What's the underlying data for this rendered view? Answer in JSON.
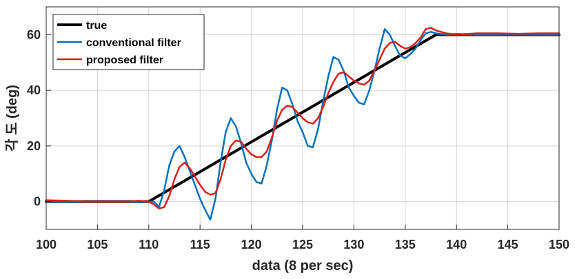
{
  "chart_data": {
    "type": "line",
    "title": "",
    "xlabel": "data (8 per sec)",
    "ylabel": "각 도 (deg)",
    "xlim": [
      100,
      150
    ],
    "ylim": [
      -10,
      70
    ],
    "xticks": [
      100,
      105,
      110,
      115,
      120,
      125,
      130,
      135,
      140,
      145,
      150
    ],
    "yticks": [
      0,
      20,
      40,
      60
    ],
    "grid": true,
    "legend_position": "top-left",
    "series": [
      {
        "name": "true",
        "color": "#000000",
        "x": [
          100,
          110,
          138,
          150
        ],
        "y": [
          0,
          0,
          60,
          60
        ]
      },
      {
        "name": "conventional filter",
        "color": "#0072BD",
        "x": [
          100,
          102,
          104,
          106,
          108,
          109,
          110,
          110.5,
          111,
          111.5,
          112,
          112.5,
          113,
          113.5,
          114,
          114.5,
          115,
          115.5,
          116,
          116.5,
          117,
          117.5,
          118,
          118.5,
          119,
          119.5,
          120,
          120.5,
          121,
          121.5,
          122,
          122.5,
          123,
          123.5,
          124,
          124.5,
          125,
          125.5,
          126,
          126.5,
          127,
          127.5,
          128,
          128.5,
          129,
          129.5,
          130,
          130.5,
          131,
          131.5,
          132,
          132.5,
          133,
          133.5,
          134,
          134.5,
          135,
          135.5,
          136,
          136.5,
          137,
          137.5,
          138,
          139,
          140,
          142,
          144,
          146,
          148,
          150
        ],
        "y": [
          0,
          0,
          0,
          0,
          0,
          0,
          0,
          0,
          -2,
          4,
          13,
          18,
          20,
          16,
          11,
          6,
          1,
          -3,
          -6.5,
          1,
          14,
          25,
          30,
          27,
          21,
          14,
          10,
          7,
          6.5,
          13,
          22,
          33,
          41,
          40,
          35,
          29,
          25,
          20,
          19.5,
          26,
          36,
          45,
          52,
          51,
          47,
          41,
          38,
          35.5,
          35,
          40,
          47,
          55,
          62,
          60,
          56,
          52.5,
          51.5,
          53,
          55,
          58,
          60.5,
          61,
          60.5,
          60,
          60,
          60,
          60,
          60,
          60,
          60
        ]
      },
      {
        "name": "proposed filter",
        "color": "#D91E18",
        "x": [
          100,
          102,
          104,
          106,
          108,
          109,
          110,
          110.5,
          111,
          111.5,
          112,
          112.5,
          113,
          113.5,
          114,
          114.5,
          115,
          115.5,
          116,
          116.5,
          117,
          117.5,
          118,
          118.5,
          119,
          119.5,
          120,
          120.5,
          121,
          121.5,
          122,
          122.5,
          123,
          123.5,
          124,
          124.5,
          125,
          125.5,
          126,
          126.5,
          127,
          127.5,
          128,
          128.5,
          129,
          129.5,
          130,
          130.5,
          131,
          131.5,
          132,
          132.5,
          133,
          133.5,
          134,
          134.5,
          135,
          135.5,
          136,
          136.5,
          137,
          137.5,
          138,
          139,
          140,
          142,
          144,
          146,
          148,
          150
        ],
        "y": [
          0.5,
          0.3,
          0,
          0,
          0,
          0.3,
          0,
          -1,
          -2.5,
          -2,
          2,
          8,
          12.5,
          14,
          12,
          9,
          6,
          3.5,
          2.5,
          3,
          8,
          15,
          20,
          22,
          21.5,
          19,
          17,
          16,
          16,
          18,
          23,
          29,
          33,
          34.5,
          34,
          32,
          30,
          28.5,
          28,
          30,
          34,
          39,
          43,
          46,
          46.5,
          45,
          43.5,
          42.5,
          42,
          43.5,
          47,
          51,
          55,
          57,
          57.5,
          56,
          55,
          55.5,
          57,
          59,
          62,
          62.5,
          61.5,
          60.5,
          60,
          60.5,
          60.5,
          60.3,
          60.5,
          60.5
        ]
      }
    ]
  }
}
